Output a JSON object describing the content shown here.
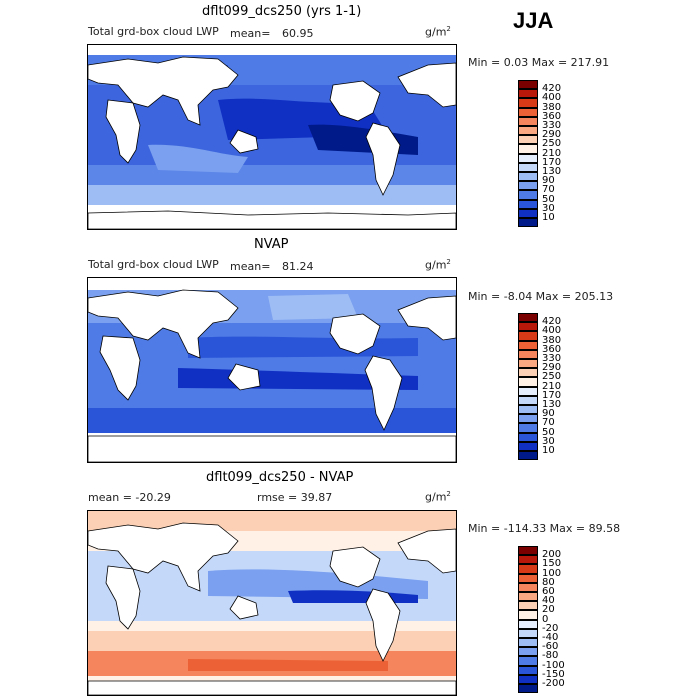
{
  "season": "JJA",
  "units": "g/m",
  "units_exp": "2",
  "panels": [
    {
      "title": "dflt099_dcs250 (yrs 1-1)",
      "subtitle": "Total grd-box cloud LWP",
      "mean_label": "mean=",
      "mean_value": "60.95",
      "minmax": "Min =    0.03 Max = 217.91"
    },
    {
      "title": "NVAP",
      "subtitle": "Total grd-box cloud LWP",
      "mean_label": "mean=",
      "mean_value": "81.24",
      "minmax": "Min =  -8.04 Max = 205.13"
    },
    {
      "title": "dflt099_dcs250 - NVAP",
      "mean_text": "mean = -20.29",
      "rmse_text": "rmse =  39.87",
      "minmax": "Min = -114.33 Max =  89.58"
    }
  ],
  "colorbars": [
    {
      "labels": [
        "420",
        "400",
        "380",
        "360",
        "330",
        "290",
        "250",
        "210",
        "170",
        "130",
        "90",
        "70",
        "50",
        "30",
        "10"
      ],
      "colors": [
        "#7a0000",
        "#b8180a",
        "#d63a16",
        "#ec6236",
        "#f5855c",
        "#f9a882",
        "#fcd0b4",
        "#fff1e6",
        "#e4eefc",
        "#c4d8fa",
        "#9ebdf5",
        "#7aa0ef",
        "#4f7be6",
        "#2a55d8",
        "#1030c4",
        "#001a8a"
      ]
    },
    {
      "labels": [
        "420",
        "400",
        "380",
        "360",
        "330",
        "290",
        "250",
        "210",
        "170",
        "130",
        "90",
        "70",
        "50",
        "30",
        "10"
      ],
      "colors": [
        "#7a0000",
        "#b8180a",
        "#d63a16",
        "#ec6236",
        "#f5855c",
        "#f9a882",
        "#fcd0b4",
        "#fff1e6",
        "#e4eefc",
        "#c4d8fa",
        "#9ebdf5",
        "#7aa0ef",
        "#4f7be6",
        "#2a55d8",
        "#1030c4",
        "#001a8a"
      ]
    },
    {
      "labels": [
        "200",
        "150",
        "100",
        "80",
        "60",
        "40",
        "20",
        "0",
        "-20",
        "-40",
        "-60",
        "-80",
        "-100",
        "-150",
        "-200"
      ],
      "colors": [
        "#7a0000",
        "#b8180a",
        "#d63a16",
        "#ec6236",
        "#f5855c",
        "#f9a882",
        "#fcd0b4",
        "#fff1e6",
        "#e4eefc",
        "#c4d8fa",
        "#9ebdf5",
        "#7aa0ef",
        "#4f7be6",
        "#2a55d8",
        "#1030c4",
        "#001a8a"
      ]
    }
  ]
}
